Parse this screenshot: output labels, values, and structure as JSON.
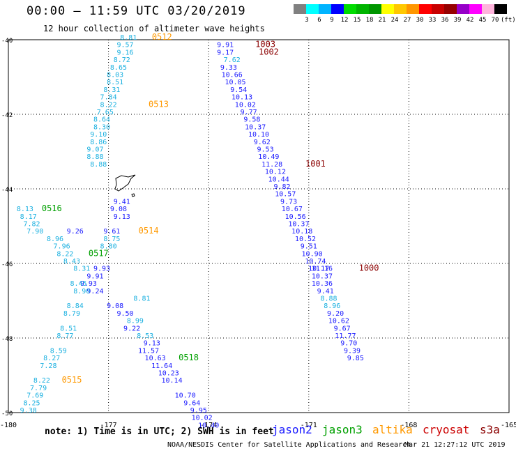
{
  "header": {
    "title": "00:00 – 11:59 UTC 03/20/2019",
    "subtitle": "12 hour collection of altimeter wave heights"
  },
  "color_scale": {
    "labels": [
      "3",
      "6",
      "9",
      "12",
      "15",
      "18",
      "21",
      "24",
      "27",
      "30",
      "33",
      "36",
      "39",
      "42",
      "45",
      "70",
      "(ft)"
    ],
    "colors": [
      "#808080",
      "#00ffff",
      "#00b4ff",
      "#0000ff",
      "#00dc00",
      "#00b400",
      "#009600",
      "#ffff00",
      "#ffc800",
      "#ff9600",
      "#ff0000",
      "#c80000",
      "#960000",
      "#9600c8",
      "#ff00ff",
      "#ffb4dc",
      "#000000"
    ]
  },
  "footer": {
    "note": "note: 1) Time is in UTC; 2) SWH is in feet",
    "legend": [
      {
        "name": "jason2",
        "color": "#1a1aff"
      },
      {
        "name": "jason3",
        "color": "#00a000"
      },
      {
        "name": "altika",
        "color": "#ff9900"
      },
      {
        "name": "cryosat",
        "color": "#cc0000"
      },
      {
        "name": "s3a",
        "color": "#8b0000"
      }
    ],
    "credit": "NOAA/NESDIS Center for Satellite Applications and Research",
    "stamp": "Mar 21 12:27:12 UTC 2019"
  },
  "chart_data": {
    "type": "scatter",
    "xlim": [
      -180,
      -165
    ],
    "ylim": [
      -50,
      -40
    ],
    "x_ticks": [
      "-180",
      "-177",
      "-174",
      "-171",
      "-168",
      "-165"
    ],
    "y_ticks": [
      "-40",
      "-42",
      "-44",
      "-46",
      "-48",
      "-50"
    ],
    "series": [
      {
        "name": "jason2",
        "color": "#1a1aff",
        "points": [
          [
            -173.5,
            -40.2,
            "9.91"
          ],
          [
            -173.5,
            -40.4,
            "9.17"
          ],
          [
            -173.4,
            -40.8,
            "9.33"
          ],
          [
            -173.3,
            -41.0,
            "10.66"
          ],
          [
            -173.2,
            -41.2,
            "10.05"
          ],
          [
            -173.1,
            -41.4,
            "9.54"
          ],
          [
            -173.0,
            -41.6,
            "10.13"
          ],
          [
            -172.9,
            -41.8,
            "10.02"
          ],
          [
            -172.8,
            -42.0,
            "9.77"
          ],
          [
            -172.7,
            -42.2,
            "9.58"
          ],
          [
            -172.6,
            -42.4,
            "10.37"
          ],
          [
            -172.5,
            -42.6,
            "10.10"
          ],
          [
            -172.4,
            -42.8,
            "9.62"
          ],
          [
            -172.3,
            -43.0,
            "9.53"
          ],
          [
            -172.2,
            -43.2,
            "10.49"
          ],
          [
            -172.1,
            -43.4,
            "11.28"
          ],
          [
            -172.0,
            -43.6,
            "10.12"
          ],
          [
            -171.9,
            -43.8,
            "10.44"
          ],
          [
            -171.8,
            -44.0,
            "9.82"
          ],
          [
            -171.7,
            -44.2,
            "10.57"
          ],
          [
            -171.6,
            -44.4,
            "9.73"
          ],
          [
            -171.5,
            -44.6,
            "10.67"
          ],
          [
            -171.4,
            -44.8,
            "10.56"
          ],
          [
            -171.3,
            -45.0,
            "10.37"
          ],
          [
            -171.2,
            -45.2,
            "10.18"
          ],
          [
            -171.1,
            -45.4,
            "10.52"
          ],
          [
            -171.0,
            -45.6,
            "9.51"
          ],
          [
            -170.9,
            -45.8,
            "10.90"
          ],
          [
            -170.8,
            -46.0,
            "10.74"
          ],
          [
            -170.7,
            -46.2,
            "10.17"
          ],
          [
            -170.6,
            -46.2,
            "11.16"
          ],
          [
            -170.6,
            -46.4,
            "10.37"
          ],
          [
            -170.6,
            -46.6,
            "10.36"
          ],
          [
            -170.5,
            -46.8,
            "9.41"
          ],
          [
            -170.2,
            -47.4,
            "9.20"
          ],
          [
            -170.1,
            -47.6,
            "10.62"
          ],
          [
            -170.0,
            -47.8,
            "9.67"
          ],
          [
            -169.9,
            -48.0,
            "11.77"
          ],
          [
            -169.8,
            -48.2,
            "9.70"
          ],
          [
            -169.7,
            -48.4,
            "9.39"
          ],
          [
            -169.6,
            -48.6,
            "9.85"
          ],
          [
            -176.6,
            -44.4,
            "9.41"
          ],
          [
            -176.7,
            -44.6,
            "9.08"
          ],
          [
            -176.6,
            -44.8,
            "9.13"
          ],
          [
            -176.9,
            -45.2,
            "9.61"
          ],
          [
            -178.0,
            -45.2,
            "9.26"
          ],
          [
            -177.2,
            -46.2,
            "9.93"
          ],
          [
            -177.4,
            -46.4,
            "9.91"
          ],
          [
            -177.6,
            -46.6,
            "9.93"
          ],
          [
            -177.4,
            -46.8,
            "9.24"
          ],
          [
            -176.8,
            -47.2,
            "9.08"
          ],
          [
            -176.5,
            -47.4,
            "9.50"
          ],
          [
            -176.3,
            -47.8,
            "9.22"
          ],
          [
            -175.7,
            -48.2,
            "9.13"
          ],
          [
            -175.8,
            -48.4,
            "11.57"
          ],
          [
            -175.6,
            -48.6,
            "10.63"
          ],
          [
            -175.4,
            -48.8,
            "11.64"
          ],
          [
            -175.2,
            -49.0,
            "10.23"
          ],
          [
            -175.1,
            -49.2,
            "10.14"
          ],
          [
            -174.7,
            -49.6,
            "10.70"
          ],
          [
            -174.5,
            -49.8,
            "9.64"
          ],
          [
            -174.3,
            -50.0,
            "9.95"
          ],
          [
            -174.2,
            -50.2,
            "10.02"
          ],
          [
            -174.0,
            -50.4,
            "10.40"
          ]
        ]
      },
      {
        "name": "altika",
        "color": "#1ab0e0",
        "points": [
          [
            -176.4,
            -40.0,
            "8.81"
          ],
          [
            -176.5,
            -40.2,
            "9.57"
          ],
          [
            -176.5,
            -40.4,
            "9.16"
          ],
          [
            -176.6,
            -40.6,
            "8.72"
          ],
          [
            -176.7,
            -40.8,
            "8.65"
          ],
          [
            -176.8,
            -41.0,
            "8.03"
          ],
          [
            -176.8,
            -41.2,
            "8.51"
          ],
          [
            -176.9,
            -41.4,
            "8.31"
          ],
          [
            -177.0,
            -41.6,
            "7.84"
          ],
          [
            -177.0,
            -41.8,
            "8.22"
          ],
          [
            -177.1,
            -42.0,
            "7.65"
          ],
          [
            -177.2,
            -42.2,
            "8.64"
          ],
          [
            -177.2,
            -42.4,
            "8.30"
          ],
          [
            -177.3,
            -42.6,
            "9.10"
          ],
          [
            -177.3,
            -42.8,
            "8.86"
          ],
          [
            -177.4,
            -43.0,
            "9.07"
          ],
          [
            -177.4,
            -43.2,
            "8.88"
          ],
          [
            -177.3,
            -43.4,
            "8.88"
          ],
          [
            -176.9,
            -45.4,
            "8.75"
          ],
          [
            -177.0,
            -45.6,
            "8.80"
          ],
          [
            -179.5,
            -44.6,
            "8.13"
          ],
          [
            -179.4,
            -44.8,
            "8.17"
          ],
          [
            -179.3,
            -45.0,
            "7.82"
          ],
          [
            -179.2,
            -45.2,
            "7.90"
          ],
          [
            -178.6,
            -45.4,
            "8.96"
          ],
          [
            -178.4,
            -45.6,
            "7.96"
          ],
          [
            -178.3,
            -45.8,
            "8.22"
          ],
          [
            -178.1,
            -46.0,
            "8.43"
          ],
          [
            -177.8,
            -46.2,
            "8.31"
          ],
          [
            -177.9,
            -46.6,
            "8.45"
          ],
          [
            -177.8,
            -46.8,
            "8.90"
          ],
          [
            -178.0,
            -47.2,
            "8.84"
          ],
          [
            -178.1,
            -47.4,
            "8.79"
          ],
          [
            -178.2,
            -47.8,
            "8.51"
          ],
          [
            -178.3,
            -48.0,
            "8.77"
          ],
          [
            -178.5,
            -48.4,
            "8.59"
          ],
          [
            -178.7,
            -48.6,
            "8.27"
          ],
          [
            -178.8,
            -48.8,
            "7.28"
          ],
          [
            -179.0,
            -49.2,
            "8.22"
          ],
          [
            -179.1,
            -49.4,
            "7.79"
          ],
          [
            -179.2,
            -49.6,
            "7.69"
          ],
          [
            -179.3,
            -49.8,
            "8.25"
          ],
          [
            -179.4,
            -50.0,
            "9.38"
          ],
          [
            -176.2,
            -47.6,
            "8.99"
          ],
          [
            -175.9,
            -48.0,
            "8.53"
          ],
          [
            -176.0,
            -47.0,
            "8.81"
          ],
          [
            -173.3,
            -40.6,
            "7.62"
          ],
          [
            -170.3,
            -47.2,
            "8.96"
          ],
          [
            -170.4,
            -47.0,
            "8.88"
          ]
        ]
      }
    ],
    "pass_labels": [
      {
        "x": -175.7,
        "y": -40.0,
        "text": "0512",
        "color": "#ff9900"
      },
      {
        "x": -175.8,
        "y": -41.8,
        "text": "0513",
        "color": "#ff9900"
      },
      {
        "x": -176.1,
        "y": -45.2,
        "text": "0514",
        "color": "#ff9900"
      },
      {
        "x": -178.4,
        "y": -49.2,
        "text": "0515",
        "color": "#ff9900"
      },
      {
        "x": -179.0,
        "y": -44.6,
        "text": "0516",
        "color": "#00a000"
      },
      {
        "x": -177.6,
        "y": -45.8,
        "text": "0517",
        "color": "#00a000"
      },
      {
        "x": -174.9,
        "y": -48.6,
        "text": "0518",
        "color": "#00a000"
      },
      {
        "x": -172.6,
        "y": -40.2,
        "text": "1003",
        "color": "#8b0000"
      },
      {
        "x": -172.5,
        "y": -40.4,
        "text": "1002",
        "color": "#8b0000"
      },
      {
        "x": -171.1,
        "y": -43.4,
        "text": "1001",
        "color": "#8b0000"
      },
      {
        "x": -169.5,
        "y": -46.2,
        "text": "1000",
        "color": "#8b0000"
      }
    ]
  }
}
